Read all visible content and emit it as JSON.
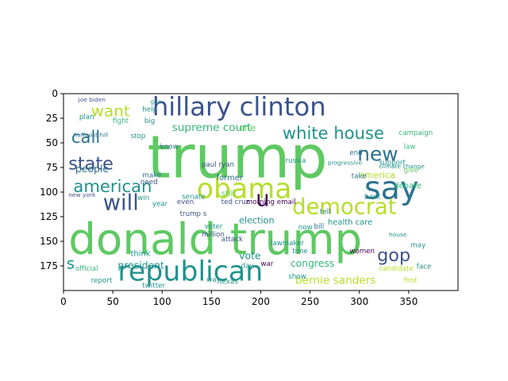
{
  "x_axis": {
    "ticks": [
      0,
      50,
      100,
      150,
      200,
      250,
      300,
      350
    ],
    "tick_labels": [
      "0",
      "50",
      "100",
      "150",
      "200",
      "250",
      "300",
      "350"
    ],
    "range": [
      0,
      400
    ]
  },
  "y_axis": {
    "ticks": [
      0,
      25,
      50,
      75,
      100,
      125,
      150,
      175
    ],
    "tick_labels": [
      "0",
      "25",
      "50",
      "75",
      "100",
      "125",
      "150",
      "175"
    ],
    "range": [
      0,
      200
    ]
  },
  "palette": [
    "#440154",
    "#3b528b",
    "#21918c",
    "#5ec962",
    "#fde725",
    "#2c728e",
    "#35b779",
    "#b5de2b"
  ],
  "words": [
    {
      "text": "trump",
      "x": 85,
      "y": 85,
      "size": 60,
      "color": "#5ec962"
    },
    {
      "text": "donald trump",
      "x": 5,
      "y": 163,
      "size": 44,
      "color": "#5ec962"
    },
    {
      "text": "hillary clinton",
      "x": 90,
      "y": 22,
      "size": 26,
      "color": "#3b528b"
    },
    {
      "text": "say",
      "x": 305,
      "y": 107,
      "size": 32,
      "color": "#2c728e"
    },
    {
      "text": "obama",
      "x": 135,
      "y": 106,
      "size": 28,
      "color": "#b5de2b"
    },
    {
      "text": "republican",
      "x": 55,
      "y": 190,
      "size": 28,
      "color": "#21918c"
    },
    {
      "text": "democrat",
      "x": 232,
      "y": 122,
      "size": 22,
      "color": "#b5de2b"
    },
    {
      "text": "white house",
      "x": 222,
      "y": 46,
      "size": 17,
      "color": "#21918c"
    },
    {
      "text": "new",
      "x": 298,
      "y": 68,
      "size": 20,
      "color": "#2c728e"
    },
    {
      "text": "will",
      "x": 40,
      "y": 118,
      "size": 22,
      "color": "#3b528b"
    },
    {
      "text": "american",
      "x": 10,
      "y": 100,
      "size": 17,
      "color": "#21918c"
    },
    {
      "text": "state",
      "x": 5,
      "y": 77,
      "size": 18,
      "color": "#3b528b"
    },
    {
      "text": "call",
      "x": 8,
      "y": 50,
      "size": 17,
      "color": "#2c728e"
    },
    {
      "text": "want",
      "x": 28,
      "y": 23,
      "size": 16,
      "color": "#b5de2b"
    },
    {
      "text": "supreme court",
      "x": 110,
      "y": 38,
      "size": 11,
      "color": "#35b779"
    },
    {
      "text": "gop",
      "x": 318,
      "y": 170,
      "size": 18,
      "color": "#3b528b"
    },
    {
      "text": "bernie sanders",
      "x": 235,
      "y": 193,
      "size": 11,
      "color": "#b5de2b"
    },
    {
      "text": "congress",
      "x": 230,
      "y": 176,
      "size": 10,
      "color": "#35b779"
    },
    {
      "text": "u",
      "x": 195,
      "y": 114,
      "size": 22,
      "color": "#440154"
    },
    {
      "text": "people",
      "x": 12,
      "y": 80,
      "size": 10,
      "color": "#2c728e"
    },
    {
      "text": "president",
      "x": 55,
      "y": 178,
      "size": 10,
      "color": "#21918c"
    },
    {
      "text": "s",
      "x": 3,
      "y": 178,
      "size": 16,
      "color": "#21918c"
    },
    {
      "text": "official",
      "x": 12,
      "y": 180,
      "size": 7,
      "color": "#35b779"
    },
    {
      "text": "vote",
      "x": 178,
      "y": 168,
      "size": 10,
      "color": "#21918c"
    },
    {
      "text": "election",
      "x": 178,
      "y": 132,
      "size": 9,
      "color": "#21918c"
    },
    {
      "text": "health care",
      "x": 268,
      "y": 133,
      "size": 8,
      "color": "#21918c"
    },
    {
      "text": "america",
      "x": 300,
      "y": 86,
      "size": 9,
      "color": "#b5de2b"
    },
    {
      "text": "debate",
      "x": 335,
      "y": 96,
      "size": 8,
      "color": "#35b779"
    },
    {
      "text": "one",
      "x": 178,
      "y": 38,
      "size": 9,
      "color": "#5ec962"
    },
    {
      "text": "think",
      "x": 68,
      "y": 165,
      "size": 8,
      "color": "#21918c"
    },
    {
      "text": "ted cruz",
      "x": 160,
      "y": 112,
      "size": 7,
      "color": "#3b528b"
    },
    {
      "text": "morning email",
      "x": 185,
      "y": 112,
      "size": 7,
      "color": "#440154"
    },
    {
      "text": "russia",
      "x": 225,
      "y": 70,
      "size": 7,
      "color": "#21918c"
    },
    {
      "text": "former",
      "x": 155,
      "y": 88,
      "size": 8,
      "color": "#2c728e"
    },
    {
      "text": "still",
      "x": 160,
      "y": 104,
      "size": 8,
      "color": "#5ec962"
    },
    {
      "text": "know",
      "x": 98,
      "y": 56,
      "size": 7,
      "color": "#2c728e"
    },
    {
      "text": "make",
      "x": 80,
      "y": 85,
      "size": 7,
      "color": "#2c728e"
    },
    {
      "text": "need",
      "x": 78,
      "y": 92,
      "size": 7,
      "color": "#3b528b"
    },
    {
      "text": "win",
      "x": 75,
      "y": 108,
      "size": 7,
      "color": "#21918c"
    },
    {
      "text": "year",
      "x": 90,
      "y": 114,
      "size": 7,
      "color": "#21918c"
    },
    {
      "text": "even",
      "x": 115,
      "y": 112,
      "size": 7,
      "color": "#3b528b"
    },
    {
      "text": "trump s",
      "x": 118,
      "y": 124,
      "size": 7,
      "color": "#3b528b"
    },
    {
      "text": "voter",
      "x": 143,
      "y": 137,
      "size": 7,
      "color": "#21918c"
    },
    {
      "text": "senate",
      "x": 120,
      "y": 107,
      "size": 7,
      "color": "#21918c"
    },
    {
      "text": "attack",
      "x": 160,
      "y": 150,
      "size": 7,
      "color": "#3b528b"
    },
    {
      "text": "bill",
      "x": 254,
      "y": 137,
      "size": 7,
      "color": "#2c728e"
    },
    {
      "text": "tell",
      "x": 260,
      "y": 122,
      "size": 7,
      "color": "#2c728e"
    },
    {
      "text": "now",
      "x": 238,
      "y": 138,
      "size": 7,
      "color": "#21918c"
    },
    {
      "text": "take",
      "x": 292,
      "y": 86,
      "size": 7,
      "color": "#2c728e"
    },
    {
      "text": "back",
      "x": 305,
      "y": 107,
      "size": 7,
      "color": "#21918c"
    },
    {
      "text": "end",
      "x": 290,
      "y": 62,
      "size": 7,
      "color": "#2c728e"
    },
    {
      "text": "law",
      "x": 345,
      "y": 56,
      "size": 7,
      "color": "#35b779"
    },
    {
      "text": "give",
      "x": 345,
      "y": 80,
      "size": 7,
      "color": "#5ec962"
    },
    {
      "text": "support",
      "x": 320,
      "y": 72,
      "size": 7,
      "color": "#21918c"
    },
    {
      "text": "campaign",
      "x": 340,
      "y": 42,
      "size": 7,
      "color": "#35b779"
    },
    {
      "text": "plan",
      "x": 16,
      "y": 26,
      "size": 7,
      "color": "#21918c"
    },
    {
      "text": "help",
      "x": 80,
      "y": 18,
      "size": 7,
      "color": "#21918c"
    },
    {
      "text": "fight",
      "x": 50,
      "y": 30,
      "size": 7,
      "color": "#35b779"
    },
    {
      "text": "big",
      "x": 82,
      "y": 30,
      "size": 7,
      "color": "#21918c"
    },
    {
      "text": "stop",
      "x": 68,
      "y": 45,
      "size": 7,
      "color": "#21918c"
    },
    {
      "text": "gun",
      "x": 88,
      "y": 10,
      "size": 6,
      "color": "#21918c"
    },
    {
      "text": "joe biden",
      "x": 15,
      "y": 8,
      "size": 6,
      "color": "#3b528b"
    },
    {
      "text": "paul ryan",
      "x": 140,
      "y": 74,
      "size": 7,
      "color": "#3b528b"
    },
    {
      "text": "million",
      "x": 140,
      "y": 145,
      "size": 7,
      "color": "#3b528b"
    },
    {
      "text": "lawmaker",
      "x": 210,
      "y": 154,
      "size": 7,
      "color": "#21918c"
    },
    {
      "text": "report",
      "x": 28,
      "y": 192,
      "size": 7,
      "color": "#21918c"
    },
    {
      "text": "twitter",
      "x": 80,
      "y": 197,
      "size": 7,
      "color": "#21918c"
    },
    {
      "text": "way",
      "x": 145,
      "y": 191,
      "size": 7,
      "color": "#21918c"
    },
    {
      "text": "texas",
      "x": 158,
      "y": 193,
      "size": 7,
      "color": "#21918c"
    },
    {
      "text": "war",
      "x": 200,
      "y": 175,
      "size": 7,
      "color": "#440154"
    },
    {
      "text": "day",
      "x": 180,
      "y": 177,
      "size": 7,
      "color": "#21918c"
    },
    {
      "text": "time",
      "x": 232,
      "y": 162,
      "size": 7,
      "color": "#21918c"
    },
    {
      "text": "show",
      "x": 228,
      "y": 188,
      "size": 7,
      "color": "#21918c"
    },
    {
      "text": "first",
      "x": 345,
      "y": 192,
      "size": 7,
      "color": "#b5de2b"
    },
    {
      "text": "face",
      "x": 358,
      "y": 178,
      "size": 7,
      "color": "#21918c"
    },
    {
      "text": "may",
      "x": 352,
      "y": 156,
      "size": 7,
      "color": "#21918c"
    },
    {
      "text": "women",
      "x": 290,
      "y": 162,
      "size": 7,
      "color": "#440154"
    },
    {
      "text": "new york",
      "x": 5,
      "y": 105,
      "size": 6,
      "color": "#3b528b"
    },
    {
      "text": "house",
      "x": 330,
      "y": 145,
      "size": 6,
      "color": "#21918c"
    },
    {
      "text": "climate change",
      "x": 320,
      "y": 76,
      "size": 6,
      "color": "#21918c"
    },
    {
      "text": "huffpost hill",
      "x": 10,
      "y": 44,
      "size": 6,
      "color": "#2c728e"
    },
    {
      "text": "progressive",
      "x": 268,
      "y": 72,
      "size": 6,
      "color": "#21918c"
    },
    {
      "text": "candidate",
      "x": 320,
      "y": 180,
      "size": 7,
      "color": "#b5de2b"
    }
  ]
}
